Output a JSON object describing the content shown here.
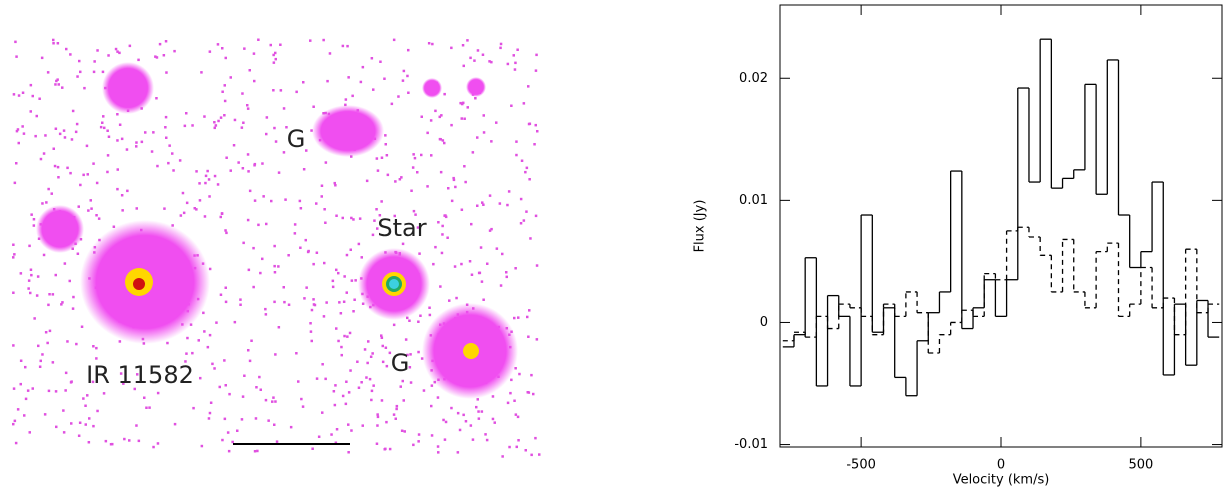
{
  "image": {
    "labels": [
      "G",
      "Star",
      "IR 11582",
      "G"
    ]
  },
  "chart_data": {
    "type": "step",
    "xlabel": "Velocity (km/s)",
    "ylabel": "Flux (Jy)",
    "x": [
      -760,
      -720,
      -680,
      -640,
      -600,
      -560,
      -520,
      -480,
      -440,
      -400,
      -360,
      -320,
      -280,
      -240,
      -200,
      -160,
      -120,
      -80,
      -40,
      0,
      40,
      80,
      120,
      160,
      200,
      240,
      280,
      320,
      360,
      400,
      440,
      480,
      520,
      560,
      600,
      640,
      680,
      720,
      760
    ],
    "xlim": [
      -790,
      790
    ],
    "xticks": [
      -500,
      0,
      500
    ],
    "ylim": [
      -0.0102,
      0.026
    ],
    "yticks": [
      -0.01,
      0,
      0.01,
      0.02
    ],
    "series": [
      {
        "style": "solid",
        "color": "#000000",
        "values": [
          -0.002,
          -0.001,
          0.0053,
          -0.0052,
          0.0022,
          0.0005,
          -0.0052,
          0.0088,
          -0.0008,
          0.0012,
          -0.0045,
          -0.006,
          -0.0015,
          0.0008,
          0.0025,
          0.0124,
          -0.0005,
          0.0012,
          0.0035,
          0.0005,
          0.0035,
          0.0192,
          0.0115,
          0.0232,
          0.011,
          0.0118,
          0.0125,
          0.0195,
          0.0105,
          0.0215,
          0.0088,
          0.0045,
          0.0058,
          0.0115,
          -0.0043,
          0.0015,
          -0.0035,
          0.0018,
          -0.0012
        ]
      },
      {
        "style": "dashed",
        "color": "#000000",
        "values": [
          -0.0015,
          -0.0008,
          -0.0012,
          0.0005,
          -0.0005,
          0.0015,
          0.0012,
          0.0005,
          -0.001,
          0.0015,
          0.0005,
          0.0025,
          0.0008,
          -0.0025,
          -0.001,
          0,
          0.001,
          0.0005,
          0.004,
          0.0035,
          0.0075,
          0.0078,
          0.007,
          0.0055,
          0.0025,
          0.0068,
          0.0025,
          0.0012,
          0.0058,
          0.0065,
          0.0005,
          0.0015,
          0.0045,
          0.0012,
          0.002,
          -0.001,
          0.006,
          0.0008,
          0.0015
        ]
      }
    ]
  }
}
